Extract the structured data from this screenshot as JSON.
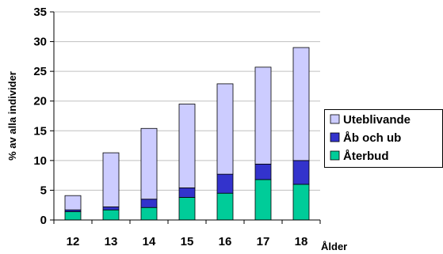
{
  "chart_data": {
    "type": "bar",
    "stacked": true,
    "categories": [
      "12",
      "13",
      "14",
      "15",
      "16",
      "17",
      "18"
    ],
    "series": [
      {
        "name": "Återbud",
        "color": "#00CC99",
        "values": [
          1.4,
          1.7,
          2.1,
          3.8,
          4.5,
          6.8,
          6.0
        ]
      },
      {
        "name": "Åb och ub",
        "color": "#3333CC",
        "values": [
          0.3,
          0.5,
          1.4,
          1.6,
          3.2,
          2.6,
          4.0
        ]
      },
      {
        "name": "Uteblivande",
        "color": "#CCCCFF",
        "values": [
          2.4,
          9.1,
          11.9,
          14.1,
          15.2,
          16.3,
          19.0
        ]
      }
    ],
    "legend_order": [
      "Uteblivande",
      "Åb och ub",
      "Återbud"
    ],
    "ylabel": "% av alla individer",
    "xlabel": "Ålder",
    "ylim": [
      0,
      35
    ],
    "yticks": [
      0,
      5,
      10,
      15,
      20,
      25,
      30,
      35
    ],
    "grid": true,
    "legend_position": "right"
  }
}
